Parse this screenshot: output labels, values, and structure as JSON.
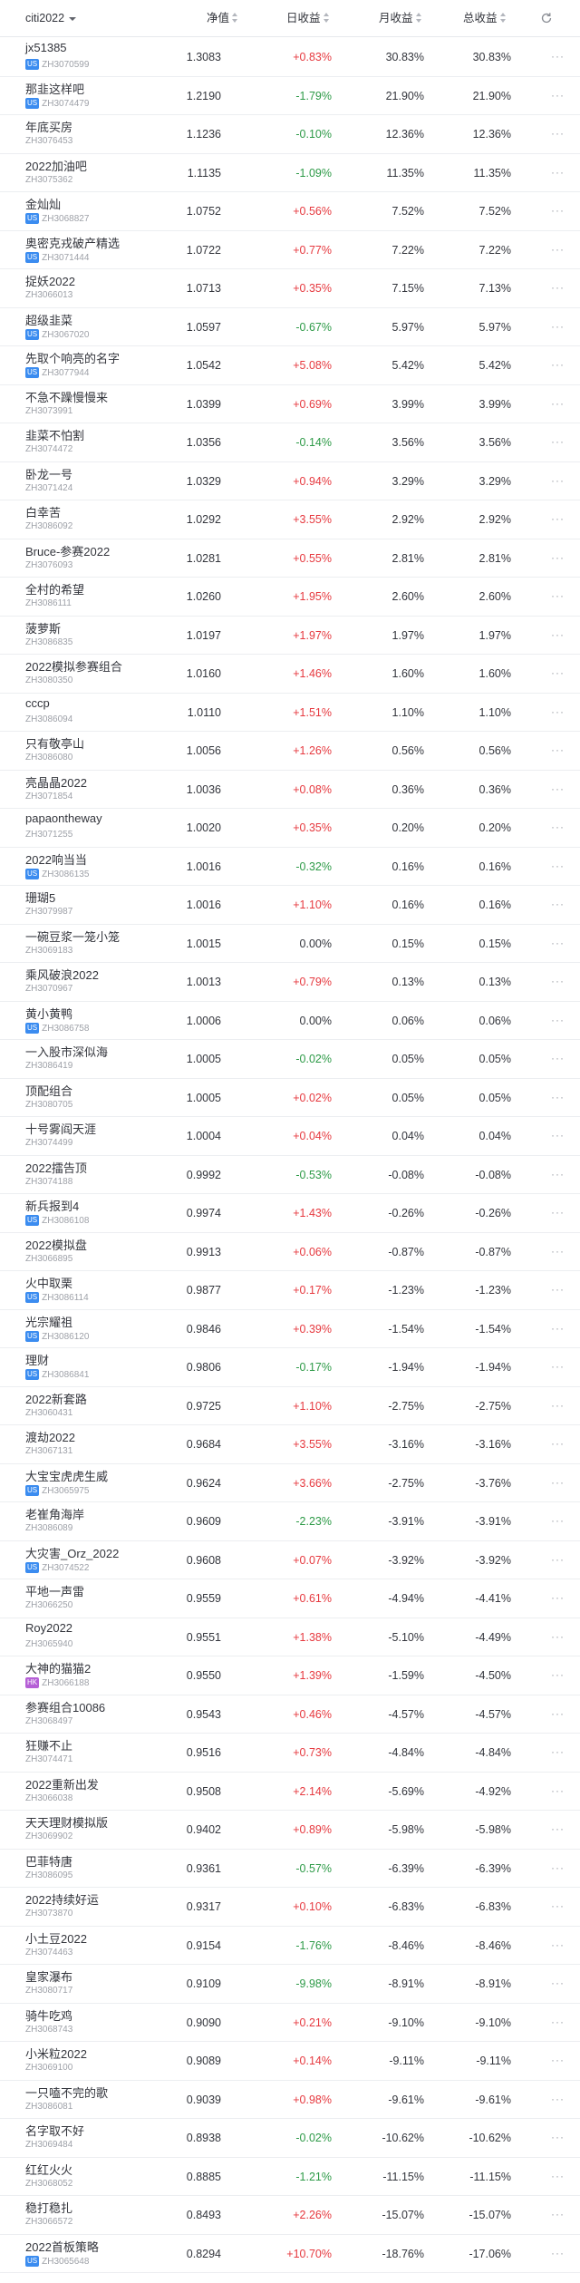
{
  "header": {
    "group_label": "citi2022",
    "nav_label": "净值",
    "day_label": "日收益",
    "month_label": "月收益",
    "total_label": "总收益"
  },
  "rows": [
    {
      "name": "jx51385",
      "code": "ZH3070599",
      "badge": "US",
      "nav": "1.3083",
      "day": "+0.83%",
      "month": "30.83%",
      "total": "30.83%"
    },
    {
      "name": "那韭这样吧",
      "code": "ZH3074479",
      "badge": "US",
      "nav": "1.2190",
      "day": "-1.79%",
      "month": "21.90%",
      "total": "21.90%"
    },
    {
      "name": "年底买房",
      "code": "ZH3076453",
      "badge": "",
      "nav": "1.1236",
      "day": "-0.10%",
      "month": "12.36%",
      "total": "12.36%"
    },
    {
      "name": "2022加油吧",
      "code": "ZH3075362",
      "badge": "",
      "nav": "1.1135",
      "day": "-1.09%",
      "month": "11.35%",
      "total": "11.35%"
    },
    {
      "name": "金灿灿",
      "code": "ZH3068827",
      "badge": "US",
      "nav": "1.0752",
      "day": "+0.56%",
      "month": "7.52%",
      "total": "7.52%"
    },
    {
      "name": "奥密克戎破产精选",
      "code": "ZH3071444",
      "badge": "US",
      "nav": "1.0722",
      "day": "+0.77%",
      "month": "7.22%",
      "total": "7.22%"
    },
    {
      "name": "捉妖2022",
      "code": "ZH3066013",
      "badge": "",
      "nav": "1.0713",
      "day": "+0.35%",
      "month": "7.15%",
      "total": "7.13%"
    },
    {
      "name": "超级韭菜",
      "code": "ZH3067020",
      "badge": "US",
      "nav": "1.0597",
      "day": "-0.67%",
      "month": "5.97%",
      "total": "5.97%"
    },
    {
      "name": "先取个响亮的名字",
      "code": "ZH3077944",
      "badge": "US",
      "nav": "1.0542",
      "day": "+5.08%",
      "month": "5.42%",
      "total": "5.42%"
    },
    {
      "name": "不急不躁慢慢来",
      "code": "ZH3073991",
      "badge": "",
      "nav": "1.0399",
      "day": "+0.69%",
      "month": "3.99%",
      "total": "3.99%"
    },
    {
      "name": "韭菜不怕割",
      "code": "ZH3074472",
      "badge": "",
      "nav": "1.0356",
      "day": "-0.14%",
      "month": "3.56%",
      "total": "3.56%"
    },
    {
      "name": "卧龙一号",
      "code": "ZH3071424",
      "badge": "",
      "nav": "1.0329",
      "day": "+0.94%",
      "month": "3.29%",
      "total": "3.29%"
    },
    {
      "name": "白幸苦",
      "code": "ZH3086092",
      "badge": "",
      "nav": "1.0292",
      "day": "+3.55%",
      "month": "2.92%",
      "total": "2.92%"
    },
    {
      "name": "Bruce-参赛2022",
      "code": "ZH3076093",
      "badge": "",
      "nav": "1.0281",
      "day": "+0.55%",
      "month": "2.81%",
      "total": "2.81%"
    },
    {
      "name": "全村的希望",
      "code": "ZH3086111",
      "badge": "",
      "nav": "1.0260",
      "day": "+1.95%",
      "month": "2.60%",
      "total": "2.60%"
    },
    {
      "name": "菠萝斯",
      "code": "ZH3086835",
      "badge": "",
      "nav": "1.0197",
      "day": "+1.97%",
      "month": "1.97%",
      "total": "1.97%"
    },
    {
      "name": "2022模拟参赛组合",
      "code": "ZH3080350",
      "badge": "",
      "nav": "1.0160",
      "day": "+1.46%",
      "month": "1.60%",
      "total": "1.60%"
    },
    {
      "name": "cccp",
      "code": "ZH3086094",
      "badge": "",
      "nav": "1.0110",
      "day": "+1.51%",
      "month": "1.10%",
      "total": "1.10%"
    },
    {
      "name": "只有敬亭山",
      "code": "ZH3086080",
      "badge": "",
      "nav": "1.0056",
      "day": "+1.26%",
      "month": "0.56%",
      "total": "0.56%"
    },
    {
      "name": "亮晶晶2022",
      "code": "ZH3071854",
      "badge": "",
      "nav": "1.0036",
      "day": "+0.08%",
      "month": "0.36%",
      "total": "0.36%"
    },
    {
      "name": "papaontheway",
      "code": "ZH3071255",
      "badge": "",
      "nav": "1.0020",
      "day": "+0.35%",
      "month": "0.20%",
      "total": "0.20%"
    },
    {
      "name": "2022响当当",
      "code": "ZH3086135",
      "badge": "US",
      "nav": "1.0016",
      "day": "-0.32%",
      "month": "0.16%",
      "total": "0.16%"
    },
    {
      "name": "珊瑚5",
      "code": "ZH3079987",
      "badge": "",
      "nav": "1.0016",
      "day": "+1.10%",
      "month": "0.16%",
      "total": "0.16%"
    },
    {
      "name": "一碗豆浆一笼小笼",
      "code": "ZH3069183",
      "badge": "",
      "nav": "1.0015",
      "day": "0.00%",
      "month": "0.15%",
      "total": "0.15%"
    },
    {
      "name": "乘风破浪2022",
      "code": "ZH3070967",
      "badge": "",
      "nav": "1.0013",
      "day": "+0.79%",
      "month": "0.13%",
      "total": "0.13%"
    },
    {
      "name": "黄小黄鸭",
      "code": "ZH3086758",
      "badge": "US",
      "nav": "1.0006",
      "day": "0.00%",
      "month": "0.06%",
      "total": "0.06%"
    },
    {
      "name": "一入股市深似海",
      "code": "ZH3086419",
      "badge": "",
      "nav": "1.0005",
      "day": "-0.02%",
      "month": "0.05%",
      "total": "0.05%"
    },
    {
      "name": "顶配组合",
      "code": "ZH3080705",
      "badge": "",
      "nav": "1.0005",
      "day": "+0.02%",
      "month": "0.05%",
      "total": "0.05%"
    },
    {
      "name": "十号雾阎天涯",
      "code": "ZH3074499",
      "badge": "",
      "nav": "1.0004",
      "day": "+0.04%",
      "month": "0.04%",
      "total": "0.04%"
    },
    {
      "name": "2022擂告顶",
      "code": "ZH3074188",
      "badge": "",
      "nav": "0.9992",
      "day": "-0.53%",
      "month": "-0.08%",
      "total": "-0.08%"
    },
    {
      "name": "新兵报到4",
      "code": "ZH3086108",
      "badge": "US",
      "nav": "0.9974",
      "day": "+1.43%",
      "month": "-0.26%",
      "total": "-0.26%"
    },
    {
      "name": "2022模拟盘",
      "code": "ZH3066895",
      "badge": "",
      "nav": "0.9913",
      "day": "+0.06%",
      "month": "-0.87%",
      "total": "-0.87%"
    },
    {
      "name": "火中取栗",
      "code": "ZH3086114",
      "badge": "US",
      "nav": "0.9877",
      "day": "+0.17%",
      "month": "-1.23%",
      "total": "-1.23%"
    },
    {
      "name": "光宗耀祖",
      "code": "ZH3086120",
      "badge": "US",
      "nav": "0.9846",
      "day": "+0.39%",
      "month": "-1.54%",
      "total": "-1.54%"
    },
    {
      "name": "理财",
      "code": "ZH3086841",
      "badge": "US",
      "nav": "0.9806",
      "day": "-0.17%",
      "month": "-1.94%",
      "total": "-1.94%"
    },
    {
      "name": "2022新套路",
      "code": "ZH3060431",
      "badge": "",
      "nav": "0.9725",
      "day": "+1.10%",
      "month": "-2.75%",
      "total": "-2.75%"
    },
    {
      "name": "渡劫2022",
      "code": "ZH3067131",
      "badge": "",
      "nav": "0.9684",
      "day": "+3.55%",
      "month": "-3.16%",
      "total": "-3.16%"
    },
    {
      "name": "大宝宝虎虎生威",
      "code": "ZH3065975",
      "badge": "US",
      "nav": "0.9624",
      "day": "+3.66%",
      "month": "-2.75%",
      "total": "-3.76%"
    },
    {
      "name": "老崔角海岸",
      "code": "ZH3086089",
      "badge": "",
      "nav": "0.9609",
      "day": "-2.23%",
      "month": "-3.91%",
      "total": "-3.91%"
    },
    {
      "name": "大灾害_Orz_2022",
      "code": "ZH3074522",
      "badge": "US",
      "nav": "0.9608",
      "day": "+0.07%",
      "month": "-3.92%",
      "total": "-3.92%"
    },
    {
      "name": "平地一声雷",
      "code": "ZH3066250",
      "badge": "",
      "nav": "0.9559",
      "day": "+0.61%",
      "month": "-4.94%",
      "total": "-4.41%"
    },
    {
      "name": "Roy2022",
      "code": "ZH3065940",
      "badge": "",
      "nav": "0.9551",
      "day": "+1.38%",
      "month": "-5.10%",
      "total": "-4.49%"
    },
    {
      "name": "大神的猫猫2",
      "code": "ZH3066188",
      "badge": "HK",
      "nav": "0.9550",
      "day": "+1.39%",
      "month": "-1.59%",
      "total": "-4.50%"
    },
    {
      "name": "参赛组合10086",
      "code": "ZH3068497",
      "badge": "",
      "nav": "0.9543",
      "day": "+0.46%",
      "month": "-4.57%",
      "total": "-4.57%"
    },
    {
      "name": "狂赚不止",
      "code": "ZH3074471",
      "badge": "",
      "nav": "0.9516",
      "day": "+0.73%",
      "month": "-4.84%",
      "total": "-4.84%"
    },
    {
      "name": "2022重新出发",
      "code": "ZH3066038",
      "badge": "",
      "nav": "0.9508",
      "day": "+2.14%",
      "month": "-5.69%",
      "total": "-4.92%"
    },
    {
      "name": "天天理财模拟版",
      "code": "ZH3069902",
      "badge": "",
      "nav": "0.9402",
      "day": "+0.89%",
      "month": "-5.98%",
      "total": "-5.98%"
    },
    {
      "name": "巴菲特唐",
      "code": "ZH3086095",
      "badge": "",
      "nav": "0.9361",
      "day": "-0.57%",
      "month": "-6.39%",
      "total": "-6.39%"
    },
    {
      "name": "2022持续好运",
      "code": "ZH3073870",
      "badge": "",
      "nav": "0.9317",
      "day": "+0.10%",
      "month": "-6.83%",
      "total": "-6.83%"
    },
    {
      "name": "小土豆2022",
      "code": "ZH3074463",
      "badge": "",
      "nav": "0.9154",
      "day": "-1.76%",
      "month": "-8.46%",
      "total": "-8.46%"
    },
    {
      "name": "皇家瀑布",
      "code": "ZH3080717",
      "badge": "",
      "nav": "0.9109",
      "day": "-9.98%",
      "month": "-8.91%",
      "total": "-8.91%"
    },
    {
      "name": "骑牛吃鸡",
      "code": "ZH3068743",
      "badge": "",
      "nav": "0.9090",
      "day": "+0.21%",
      "month": "-9.10%",
      "total": "-9.10%"
    },
    {
      "name": "小米粒2022",
      "code": "ZH3069100",
      "badge": "",
      "nav": "0.9089",
      "day": "+0.14%",
      "month": "-9.11%",
      "total": "-9.11%"
    },
    {
      "name": "一只嗑不完的歌",
      "code": "ZH3086081",
      "badge": "",
      "nav": "0.9039",
      "day": "+0.98%",
      "month": "-9.61%",
      "total": "-9.61%"
    },
    {
      "name": "名字取不好",
      "code": "ZH3069484",
      "badge": "",
      "nav": "0.8938",
      "day": "-0.02%",
      "month": "-10.62%",
      "total": "-10.62%"
    },
    {
      "name": "红红火火",
      "code": "ZH3068052",
      "badge": "",
      "nav": "0.8885",
      "day": "-1.21%",
      "month": "-11.15%",
      "total": "-11.15%"
    },
    {
      "name": "稳打稳扎",
      "code": "ZH3066572",
      "badge": "",
      "nav": "0.8493",
      "day": "+2.26%",
      "month": "-15.07%",
      "total": "-15.07%"
    },
    {
      "name": "2022首板策略",
      "code": "ZH3065648",
      "badge": "US",
      "nav": "0.8294",
      "day": "+10.70%",
      "month": "-18.76%",
      "total": "-17.06%"
    }
  ],
  "more_glyph": "···",
  "colors": {
    "up": "#e6393f",
    "down": "#2d9a47",
    "badge_us": "#3b8cf0",
    "badge_hk": "#b55fd6"
  },
  "icons": {
    "refresh": "refresh-icon",
    "more": "more-icon",
    "caret": "chevron-down-icon",
    "sort": "sort-icon"
  }
}
